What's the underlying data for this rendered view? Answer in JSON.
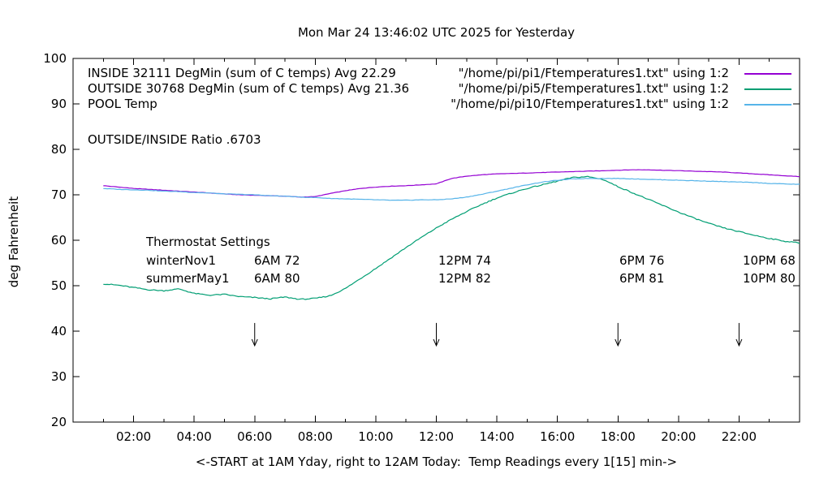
{
  "title": "Mon Mar 24 13:46:02 UTC 2025 for Yesterday",
  "ratio_text": "OUTSIDE/INSIDE Ratio .6703",
  "legend": [
    {
      "label": "INSIDE 32111 DegMin (sum of C temps) Avg 22.29",
      "file": "\"/home/pi/pi1/Ftemperatures1.txt\" using 1:2",
      "color": "#9400D3"
    },
    {
      "label": "OUTSIDE 30768 DegMin (sum of C temps) Avg 21.36",
      "file": "\"/home/pi/pi5/Ftemperatures1.txt\" using 1:2",
      "color": "#009E73"
    },
    {
      "label": "POOL Temp",
      "file": "\"/home/pi/pi10/Ftemperatures1.txt\" using 1:2",
      "color": "#56B4E9"
    }
  ],
  "thermostat": {
    "heading": "Thermostat Settings",
    "rows": [
      {
        "season": "winterNov1",
        "c1": "6AM 72",
        "c2": "12PM 74",
        "c3": "6PM 76",
        "c4": "10PM 68"
      },
      {
        "season": "summerMay1",
        "c1": "6AM 80",
        "c2": "12PM 82",
        "c3": "6PM 81",
        "c4": "10PM 80"
      }
    ]
  },
  "chart_data": {
    "type": "line",
    "title": "Mon Mar 24 13:46:02 UTC 2025 for Yesterday",
    "xlabel": "<-START at 1AM Yday, right to 12AM Today:  Temp Readings every 1[15] min->",
    "ylabel": "deg Fahrenheit",
    "xlim": [
      0,
      24
    ],
    "ylim": [
      20,
      100
    ],
    "grid": false,
    "legend_position": "top-inside",
    "xticks_major": [
      2,
      4,
      6,
      8,
      10,
      12,
      14,
      16,
      18,
      20,
      22
    ],
    "xtick_labels": [
      "02:00",
      "04:00",
      "06:00",
      "08:00",
      "10:00",
      "12:00",
      "14:00",
      "16:00",
      "18:00",
      "20:00",
      "22:00"
    ],
    "xticks_minor": [
      1,
      3,
      5,
      7,
      9,
      11,
      13,
      15,
      17,
      19,
      21,
      23
    ],
    "yticks": [
      20,
      30,
      40,
      50,
      60,
      70,
      80,
      90,
      100
    ],
    "x_hours": [
      1,
      1.5,
      2,
      2.5,
      3,
      3.5,
      4,
      4.5,
      5,
      5.5,
      6,
      6.5,
      7,
      7.5,
      8,
      8.5,
      9,
      9.5,
      10,
      10.5,
      11,
      11.5,
      12,
      12.5,
      13,
      13.5,
      14,
      14.5,
      15,
      15.5,
      16,
      16.5,
      17,
      17.5,
      18,
      18.5,
      19,
      19.5,
      20,
      20.5,
      21,
      21.5,
      22,
      22.5,
      23,
      23.5,
      24
    ],
    "series": [
      {
        "name": "INSIDE",
        "color": "#9400D3",
        "values": [
          72.0,
          71.7,
          71.4,
          71.2,
          71.0,
          70.8,
          70.6,
          70.4,
          70.2,
          70.0,
          69.9,
          69.8,
          69.7,
          69.5,
          69.6,
          70.3,
          70.9,
          71.4,
          71.7,
          71.9,
          72.0,
          72.2,
          72.4,
          73.6,
          74.1,
          74.4,
          74.6,
          74.7,
          74.8,
          74.9,
          75.0,
          75.1,
          75.2,
          75.3,
          75.4,
          75.5,
          75.5,
          75.4,
          75.3,
          75.2,
          75.1,
          75.0,
          74.8,
          74.6,
          74.4,
          74.2,
          74.0
        ]
      },
      {
        "name": "OUTSIDE",
        "color": "#009E73",
        "values": [
          50.4,
          50.1,
          49.6,
          49.1,
          48.9,
          49.3,
          48.3,
          47.9,
          48.1,
          47.6,
          47.4,
          47.1,
          47.5,
          47.0,
          47.2,
          47.8,
          49.4,
          51.6,
          53.8,
          56.1,
          58.4,
          60.6,
          62.7,
          64.6,
          66.3,
          67.9,
          69.3,
          70.4,
          71.4,
          72.2,
          73.0,
          73.8,
          74.0,
          73.4,
          71.8,
          70.4,
          69.0,
          67.6,
          66.2,
          64.9,
          63.7,
          62.7,
          61.9,
          61.1,
          60.4,
          59.8,
          59.4
        ]
      },
      {
        "name": "POOL",
        "color": "#56B4E9",
        "values": [
          71.4,
          71.2,
          71.1,
          71.0,
          70.8,
          70.7,
          70.5,
          70.4,
          70.2,
          70.1,
          70.0,
          69.8,
          69.7,
          69.5,
          69.4,
          69.2,
          69.1,
          69.0,
          68.9,
          68.8,
          68.8,
          68.9,
          68.9,
          69.1,
          69.5,
          70.1,
          70.8,
          71.5,
          72.2,
          72.8,
          73.2,
          73.5,
          73.6,
          73.6,
          73.6,
          73.5,
          73.4,
          73.3,
          73.2,
          73.1,
          73.0,
          72.9,
          72.8,
          72.7,
          72.5,
          72.4,
          72.3
        ]
      }
    ],
    "arrows": {
      "x_hours": [
        6,
        12,
        18,
        22
      ],
      "y_top": 41.8,
      "y_bottom": 36.8
    }
  }
}
